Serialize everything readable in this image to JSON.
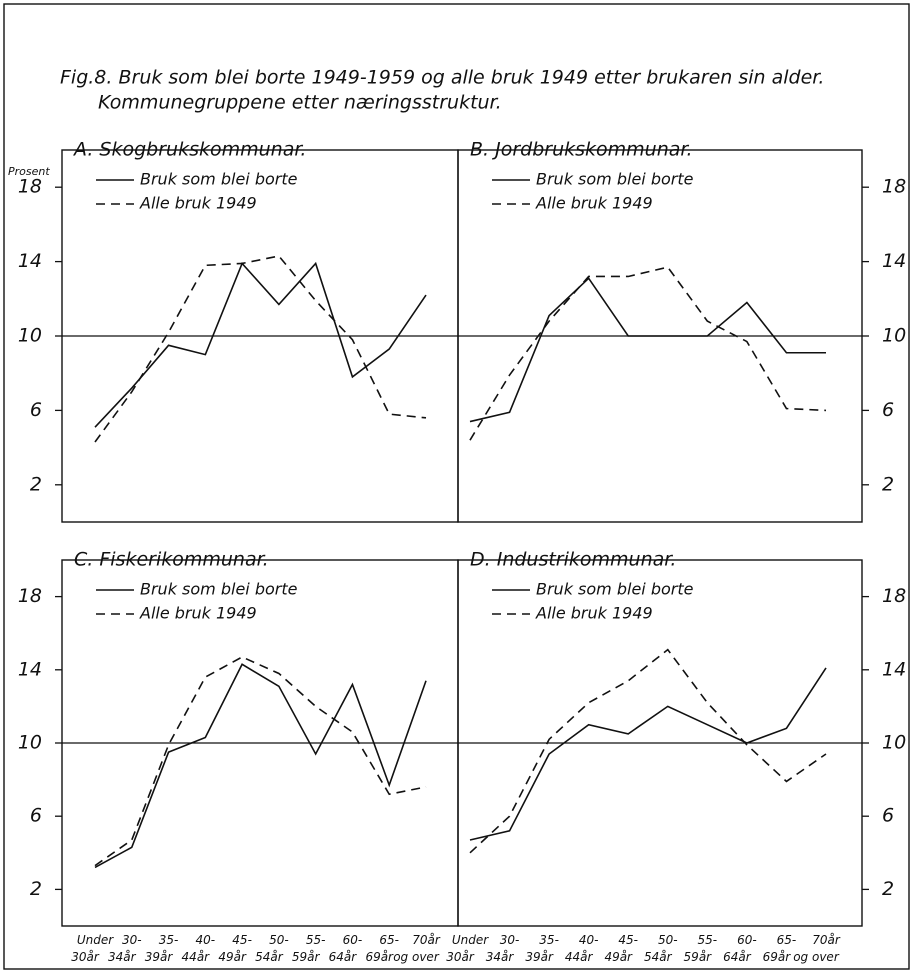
{
  "title": "Fig.8. Bruk som blei borte 1949-1959 og alle bruk 1949 etter brukaren sin alder.",
  "subtitle": "Kommunegruppene etter næringsstruktur.",
  "chart_data": [
    {
      "type": "line",
      "title": "A. Skogbrukskommunar.",
      "ylabel": "Prosent",
      "series": [
        {
          "name": "Bruk som blei borte",
          "color": "#111",
          "dash": "solid",
          "values": [
            5.1,
            7.2,
            9.5,
            9.0,
            13.9,
            11.7,
            13.9,
            7.8,
            9.3,
            12.2
          ]
        },
        {
          "name": "Alle bruk 1949",
          "color": "#111",
          "dash": "dashed",
          "values": [
            4.3,
            7.0,
            10.2,
            13.8,
            13.9,
            14.3,
            11.9,
            9.8,
            5.8,
            5.6
          ]
        }
      ],
      "ylim": [
        0,
        20
      ],
      "yticks": [
        2,
        6,
        10,
        14,
        18
      ],
      "hline": 10
    },
    {
      "type": "line",
      "title": "B. Jordbrukskommunar.",
      "series": [
        {
          "name": "Bruk som blei borte",
          "color": "#111",
          "dash": "solid",
          "values": [
            5.4,
            5.9,
            11.1,
            13.1,
            10.0,
            10.0,
            10.0,
            11.8,
            9.1,
            9.1
          ]
        },
        {
          "name": "Alle bruk 1949",
          "color": "#111",
          "dash": "dashed",
          "values": [
            4.4,
            7.9,
            10.8,
            13.2,
            13.2,
            13.7,
            10.8,
            9.7,
            6.1,
            6.0
          ]
        }
      ],
      "ylim": [
        0,
        20
      ],
      "yticks": [
        2,
        6,
        10,
        14,
        18
      ],
      "hline": 10
    },
    {
      "type": "line",
      "title": "C. Fiskerikommunar.",
      "categories": [
        "Under 30år",
        "30- 34år",
        "35- 39år",
        "40- 44år",
        "45- 49år",
        "50- 54år",
        "55- 59år",
        "60- 64år",
        "65- 69år",
        "70år og over"
      ],
      "series": [
        {
          "name": "Bruk som blei borte",
          "color": "#111",
          "dash": "solid",
          "values": [
            3.2,
            4.3,
            9.5,
            10.3,
            14.3,
            13.1,
            9.4,
            13.2,
            7.7,
            13.4
          ]
        },
        {
          "name": "Alle bruk 1949",
          "color": "#111",
          "dash": "dashed",
          "values": [
            3.3,
            4.7,
            9.9,
            13.6,
            14.7,
            13.8,
            12.0,
            10.6,
            7.2,
            7.6
          ]
        }
      ],
      "ylim": [
        0,
        20
      ],
      "yticks": [
        2,
        6,
        10,
        14,
        18
      ],
      "hline": 10
    },
    {
      "type": "line",
      "title": "D. Industrikommunar.",
      "categories": [
        "Under 30år",
        "30- 34år",
        "35- 39år",
        "40- 44år",
        "45- 49år",
        "50- 54år",
        "55- 59år",
        "60- 64år",
        "65- 69år",
        "70år og over"
      ],
      "series": [
        {
          "name": "Bruk som blei borte",
          "color": "#111",
          "dash": "solid",
          "values": [
            4.7,
            5.2,
            9.4,
            11.0,
            10.5,
            12.0,
            11.0,
            10.0,
            10.8,
            14.1
          ]
        },
        {
          "name": "Alle bruk 1949",
          "color": "#111",
          "dash": "dashed",
          "values": [
            4.0,
            6.0,
            10.2,
            12.2,
            13.4,
            15.1,
            12.2,
            9.9,
            7.9,
            9.4
          ]
        }
      ],
      "ylim": [
        0,
        20
      ],
      "yticks": [
        2,
        6,
        10,
        14,
        18
      ],
      "hline": 10
    }
  ]
}
